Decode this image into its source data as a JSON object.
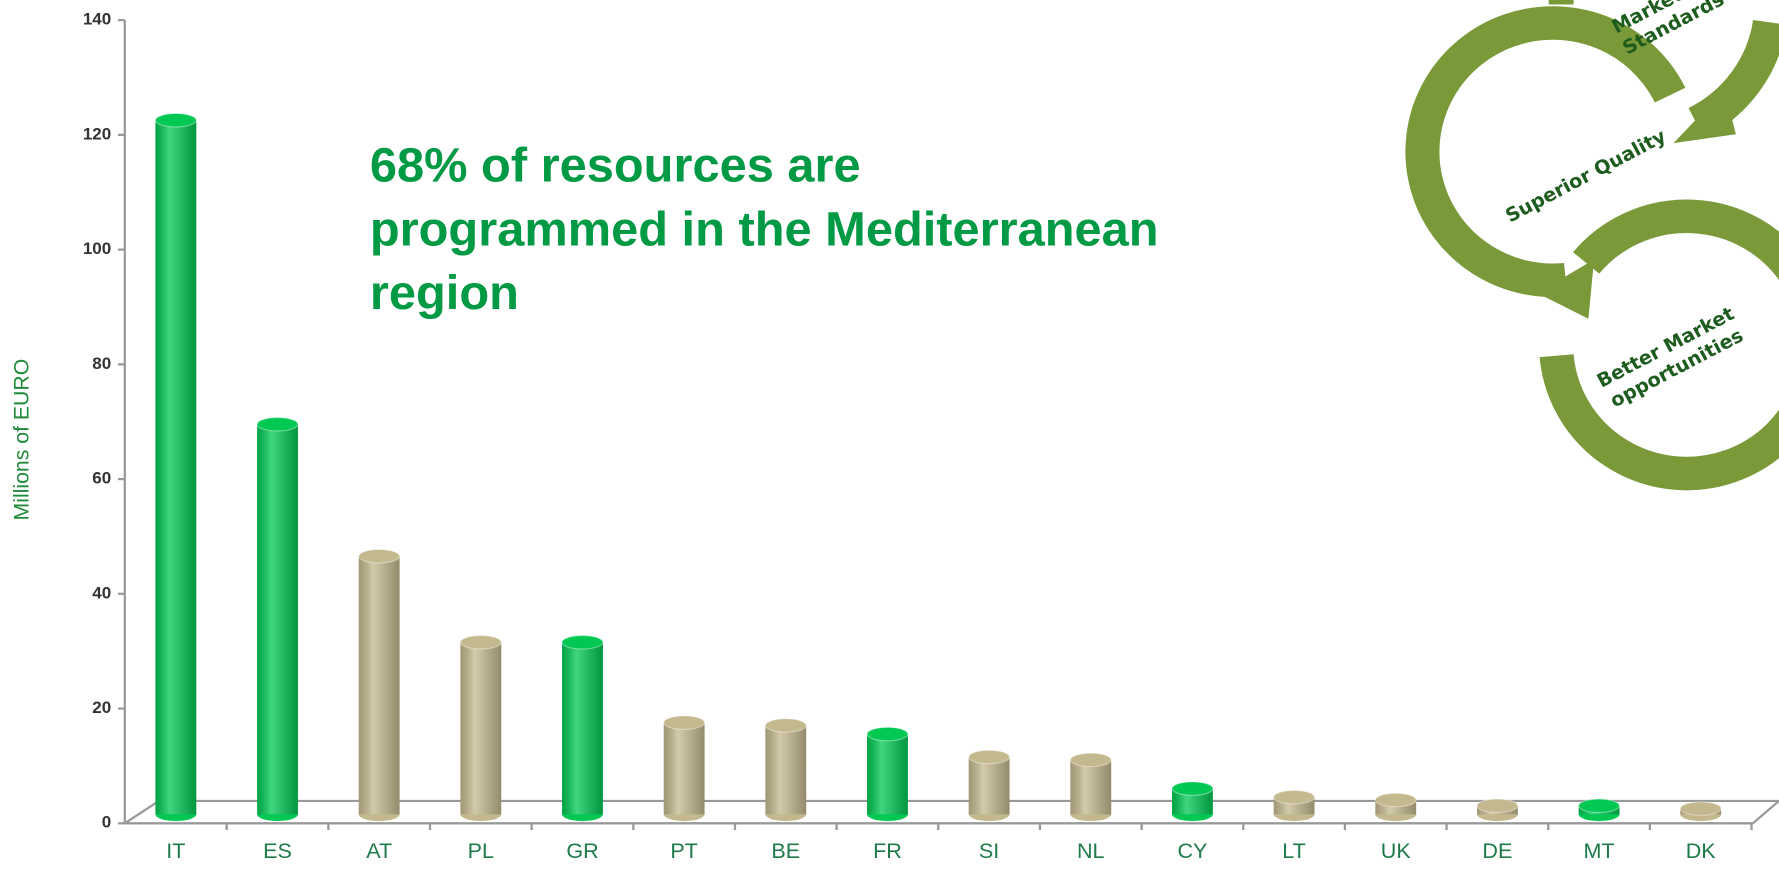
{
  "chart_data": {
    "type": "bar",
    "categories": [
      "IT",
      "ES",
      "AT",
      "PL",
      "GR",
      "PT",
      "BE",
      "FR",
      "SI",
      "NL",
      "CY",
      "LT",
      "UK",
      "DE",
      "MT",
      "DK"
    ],
    "values": [
      121,
      68,
      45,
      30,
      30,
      16,
      15.5,
      14,
      10,
      9.5,
      4.5,
      3,
      2.5,
      1.5,
      1.5,
      1
    ],
    "colors": [
      "#00c853",
      "#00c853",
      "#c4b98e",
      "#c4b98e",
      "#00c853",
      "#c4b98e",
      "#c4b98e",
      "#00c853",
      "#c4b98e",
      "#c4b98e",
      "#00c853",
      "#c4b98e",
      "#c4b98e",
      "#c4b98e",
      "#00c853",
      "#c4b98e"
    ],
    "ylabel": "Millions of EURO",
    "ylim": [
      0,
      140
    ],
    "yticks": [
      0,
      20,
      40,
      60,
      80,
      100,
      120,
      140
    ],
    "annotation": [
      "68% of resources are",
      "programmed in the Mediterranean",
      "region"
    ]
  },
  "diagram": {
    "labels": [
      [
        "Marketing",
        "Standards"
      ],
      [
        "Superior Quality"
      ],
      [
        "Better Market",
        "opportunities"
      ]
    ]
  }
}
